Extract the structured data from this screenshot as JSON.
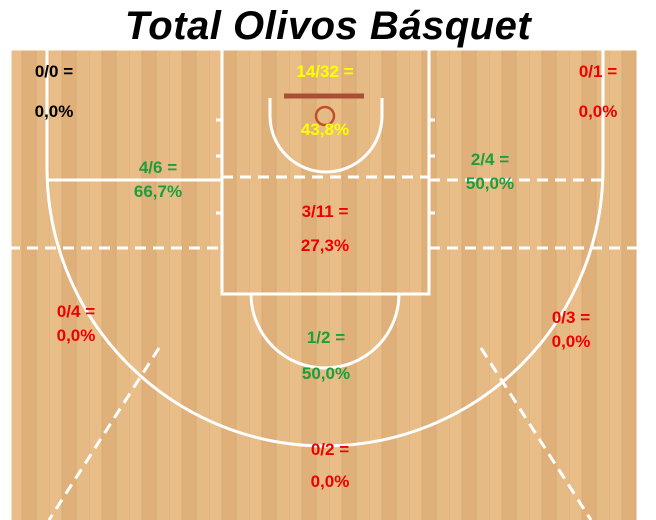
{
  "title": "Total Olivos Básquet",
  "colors": {
    "hot": "#ffff00",
    "good": "#1a9f3b",
    "bad": "#ee0000",
    "none": "#000000",
    "court_wood": "#e2b57f",
    "lines": "#ffffff",
    "rim": "#c0502a"
  },
  "zones": {
    "left_corner": {
      "ratio": "0/0 =",
      "pct": "0,0%",
      "color": "#000000"
    },
    "right_corner": {
      "ratio": "0/1 =",
      "pct": "0,0%",
      "color": "#ee0000"
    },
    "restricted": {
      "ratio": "14/32 =",
      "pct": "43,8%",
      "color": "#ffff00"
    },
    "left_elbow": {
      "ratio": "4/6 =",
      "pct": "66,7%",
      "color": "#1a9f3b"
    },
    "right_elbow": {
      "ratio": "2/4 =",
      "pct": "50,0%",
      "color": "#1a9f3b"
    },
    "paint": {
      "ratio": "3/11 =",
      "pct": "27,3%",
      "color": "#ee0000"
    },
    "left_wing": {
      "ratio": "0/4 =",
      "pct": "0,0%",
      "color": "#ee0000"
    },
    "right_wing": {
      "ratio": "0/3 =",
      "pct": "0,0%",
      "color": "#ee0000"
    },
    "top_key": {
      "ratio": "1/2 =",
      "pct": "50,0%",
      "color": "#1a9f3b"
    },
    "top_three": {
      "ratio": "0/2 =",
      "pct": "0,0%",
      "color": "#ee0000"
    }
  }
}
